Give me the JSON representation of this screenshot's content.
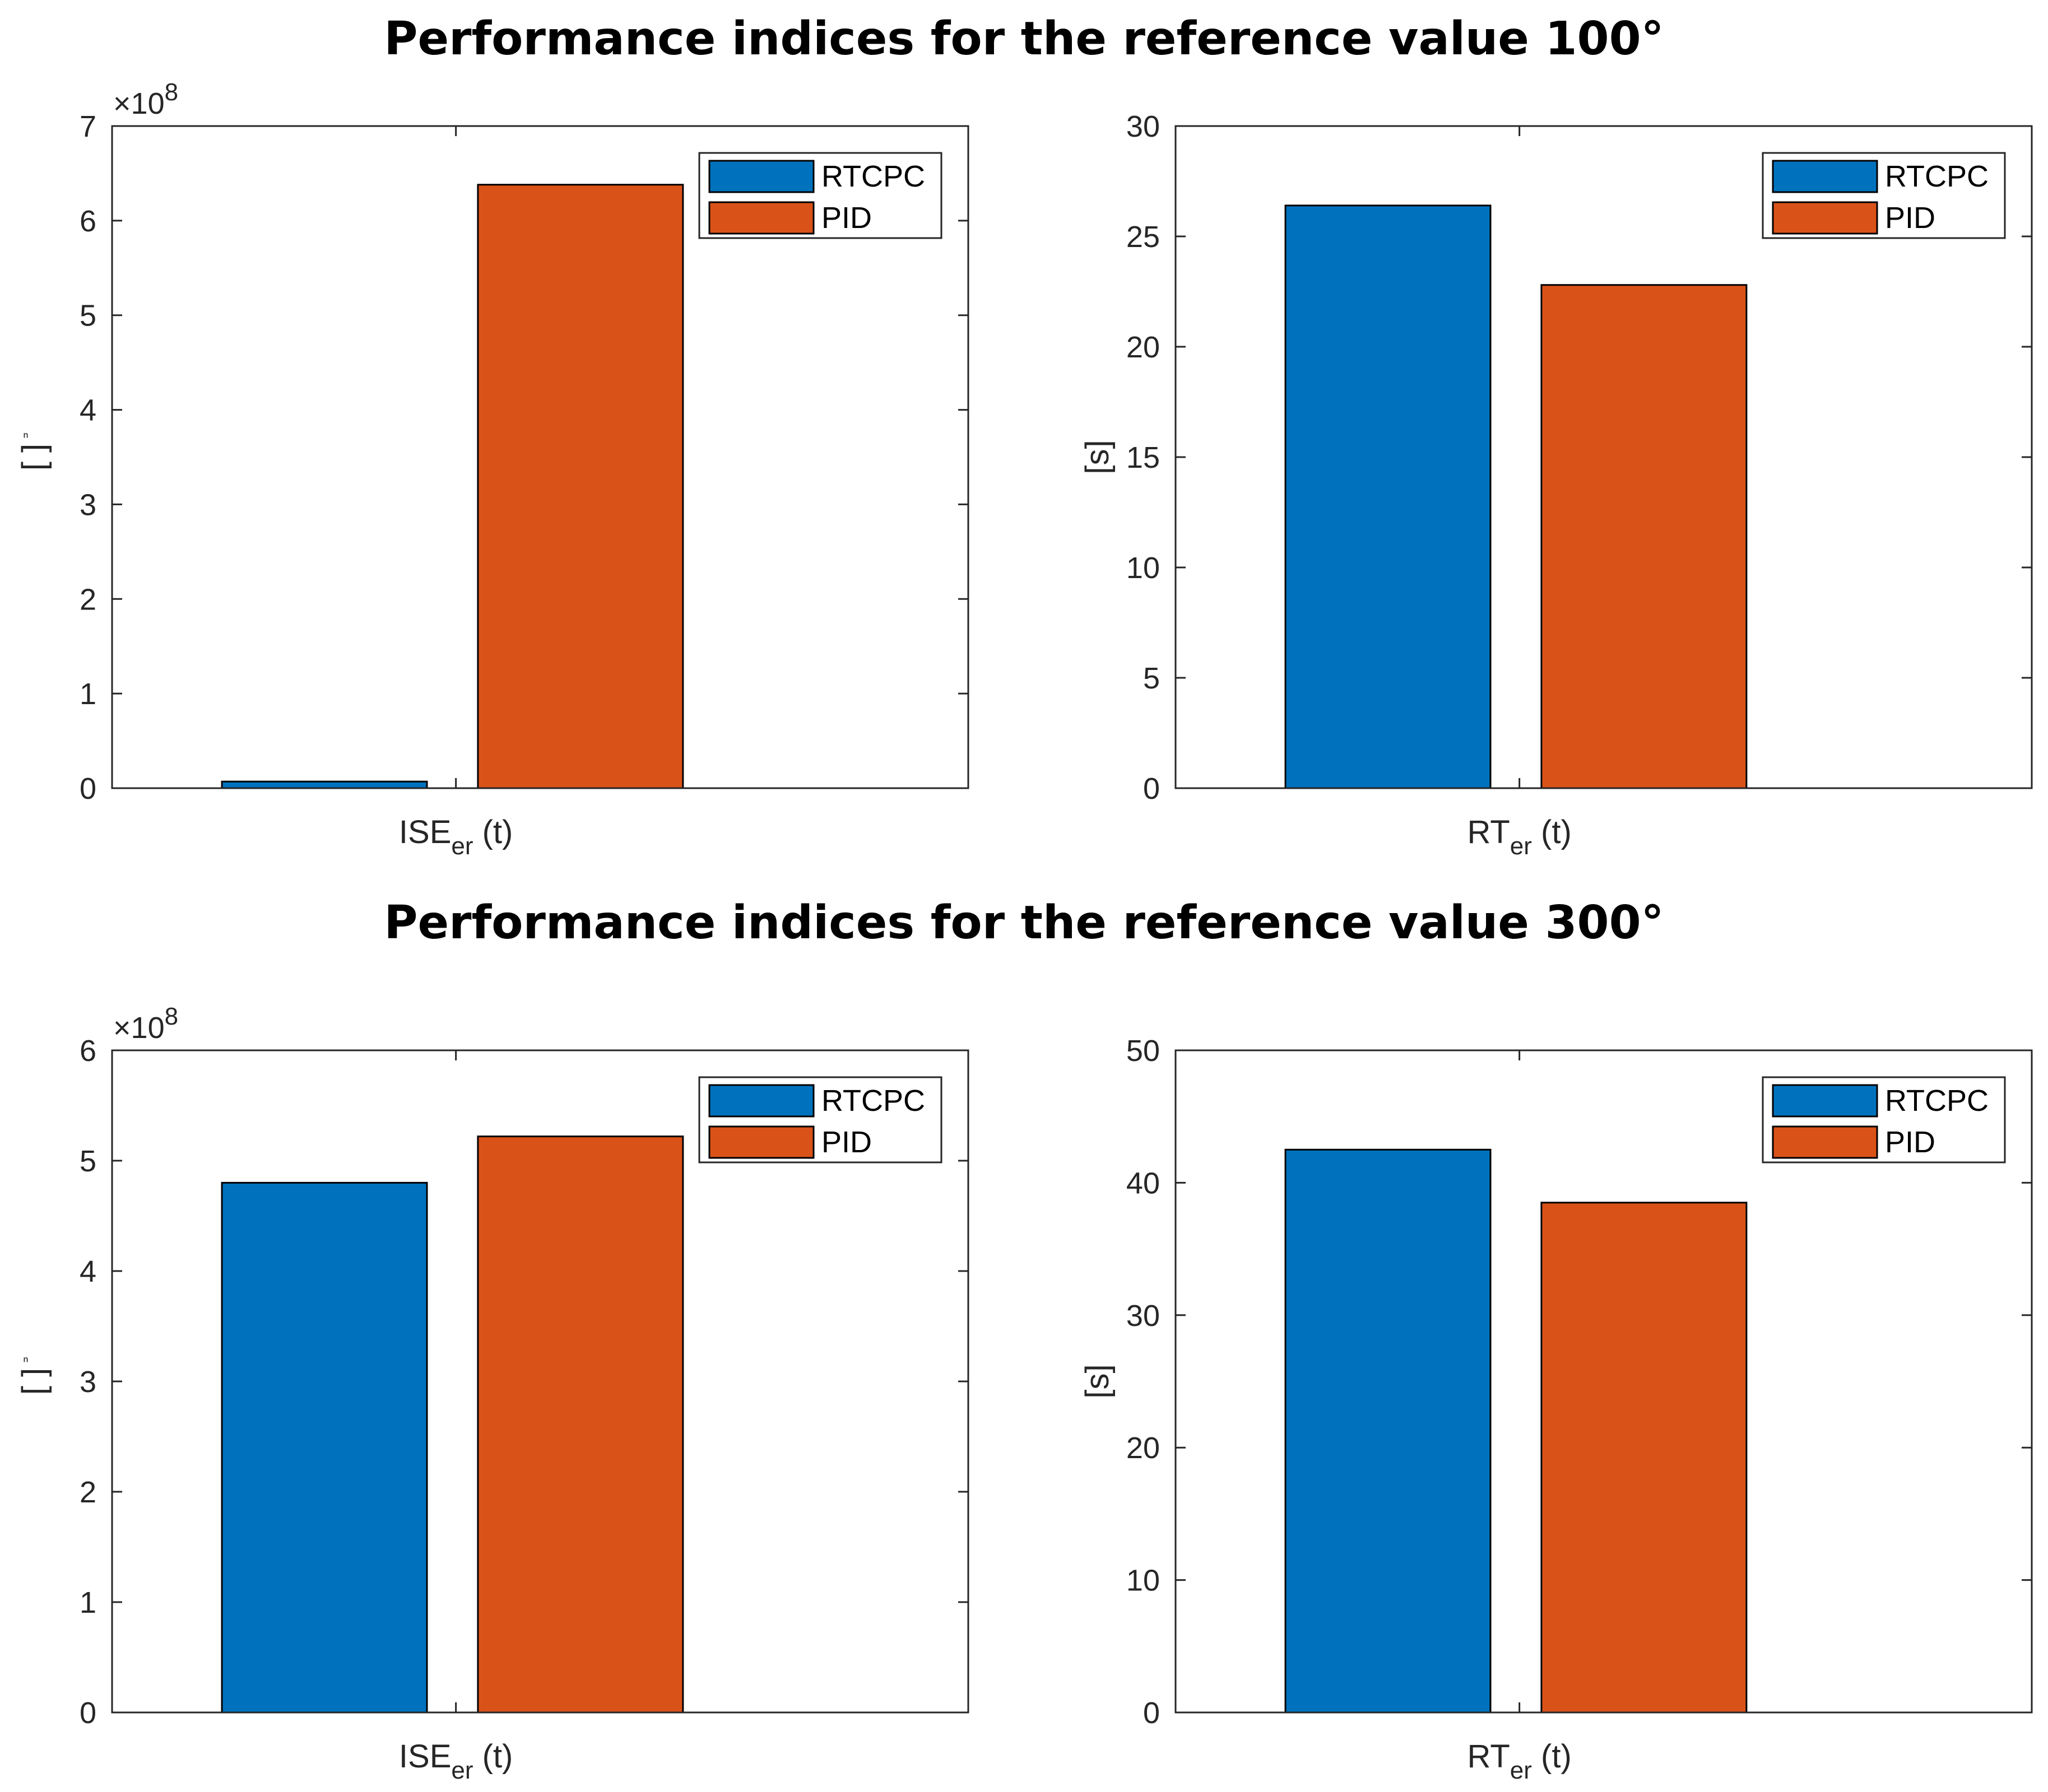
{
  "titles": {
    "top": "Performance indices for the reference value 100°",
    "bottom": "Performance indices for the reference value 300°"
  },
  "colors": {
    "rtcpc": "#0072BD",
    "pid": "#D95319"
  },
  "chart_data": [
    {
      "type": "bar",
      "group": "top",
      "title": "Performance indices for the reference value 100°",
      "categories": [
        "ISE"
      ],
      "xlabel": {
        "main": "ISE",
        "sub": "er",
        "tail": " (t)"
      },
      "ylabel": "[ ]",
      "ylabel_mark": "ⁿ",
      "exponent_label": "×10",
      "exponent_power": "8",
      "ylim": [
        0,
        7
      ],
      "yticks": [
        0,
        1,
        2,
        3,
        4,
        5,
        6,
        7
      ],
      "series": [
        {
          "name": "RTCPC",
          "values": [
            0.07
          ]
        },
        {
          "name": "PID",
          "values": [
            6.38
          ]
        }
      ],
      "legend": "top-right"
    },
    {
      "type": "bar",
      "group": "top",
      "title": "Performance indices for the reference value 100°",
      "categories": [
        "RT"
      ],
      "xlabel": {
        "main": "RT",
        "sub": "er",
        "tail": " (t)"
      },
      "ylabel": "[s]",
      "ylim": [
        0,
        30
      ],
      "yticks": [
        0,
        5,
        10,
        15,
        20,
        25,
        30
      ],
      "series": [
        {
          "name": "RTCPC",
          "values": [
            26.4
          ]
        },
        {
          "name": "PID",
          "values": [
            22.8
          ]
        }
      ],
      "legend": "top-right"
    },
    {
      "type": "bar",
      "group": "bottom",
      "title": "Performance indices for the reference value 300°",
      "categories": [
        "ISE"
      ],
      "xlabel": {
        "main": "ISE",
        "sub": "er",
        "tail": " (t)"
      },
      "ylabel": "[ ]",
      "ylabel_mark": "ⁿ",
      "exponent_label": "×10",
      "exponent_power": "8",
      "ylim": [
        0,
        6
      ],
      "yticks": [
        0,
        1,
        2,
        3,
        4,
        5,
        6
      ],
      "series": [
        {
          "name": "RTCPC",
          "values": [
            4.8
          ]
        },
        {
          "name": "PID",
          "values": [
            5.22
          ]
        }
      ],
      "legend": "top-right"
    },
    {
      "type": "bar",
      "group": "bottom",
      "title": "Performance indices for the reference value 300°",
      "categories": [
        "RT"
      ],
      "xlabel": {
        "main": "RT",
        "sub": "er",
        "tail": " (t)"
      },
      "ylabel": "[s]",
      "ylim": [
        0,
        50
      ],
      "yticks": [
        0,
        10,
        20,
        30,
        40,
        50
      ],
      "series": [
        {
          "name": "RTCPC",
          "values": [
            42.5
          ]
        },
        {
          "name": "PID",
          "values": [
            38.5
          ]
        }
      ],
      "legend": "top-right"
    }
  ]
}
